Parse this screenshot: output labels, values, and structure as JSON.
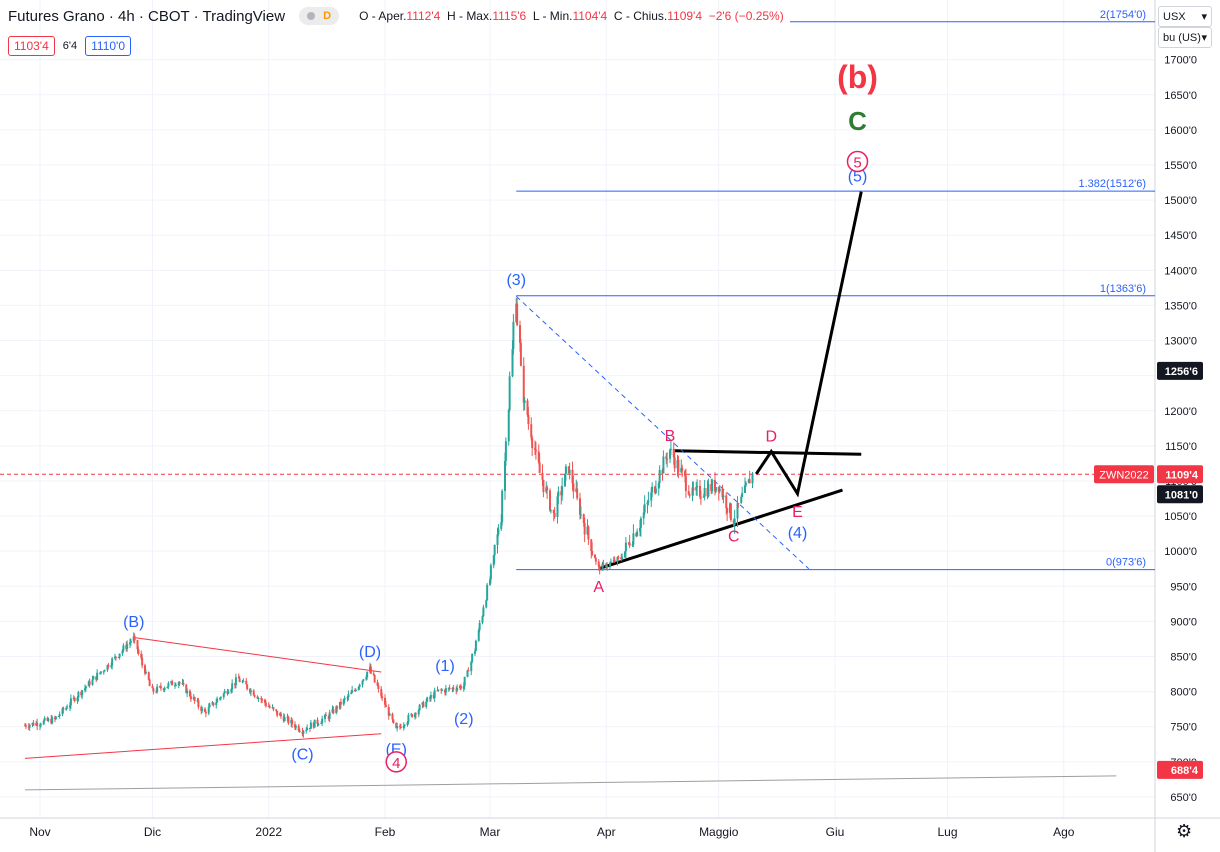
{
  "header": {
    "title": "Futures Grano · 4h · CBOT · TradingView",
    "badge_letter": "D",
    "ohlc": {
      "open_label": "O - Aper.",
      "open": "1112'4",
      "high_label": "H - Max.",
      "high": "1115'6",
      "low_label": "L - Min.",
      "low": "1104'4",
      "close_label": "C - Chius.",
      "close": "1109'4",
      "change": "−2'6 (−0.25%)"
    },
    "bid": "1103'4",
    "spread": "6'4",
    "ask": "1110'0"
  },
  "currency_select": {
    "value": "USX",
    "icon": "chevron-down-icon"
  },
  "unit_select": {
    "value": "bu (US)",
    "icon": "chevron-down-icon"
  },
  "settings_icon": "gear-icon",
  "chart_data": {
    "type": "candlestick",
    "title": "Futures Grano · 4h · CBOT · TradingView",
    "y_unit": "US cents per bushel (USX / bu)",
    "ylim": [
      620,
      1785
    ],
    "y_ticks": [
      "1700'0",
      "1650'0",
      "1600'0",
      "1550'0",
      "1500'0",
      "1450'0",
      "1400'0",
      "1350'0",
      "1300'0",
      "1250'0",
      "1200'0",
      "1150'0",
      "1100'0",
      "1050'0",
      "1000'0",
      "950'0",
      "900'0",
      "850'0",
      "800'0",
      "750'0",
      "700'0",
      "650'0"
    ],
    "y_tick_values": [
      1700,
      1650,
      1600,
      1550,
      1500,
      1450,
      1400,
      1350,
      1300,
      1250,
      1200,
      1150,
      1100,
      1050,
      1000,
      950,
      900,
      850,
      800,
      750,
      700,
      650
    ],
    "x_ticks": [
      {
        "label": "Nov",
        "date": "2021-11-01"
      },
      {
        "label": "Dic",
        "date": "2021-12-01"
      },
      {
        "label": "2022",
        "date": "2022-01-01"
      },
      {
        "label": "Feb",
        "date": "2022-02-01"
      },
      {
        "label": "Mar",
        "date": "2022-03-01"
      },
      {
        "label": "Apr",
        "date": "2022-04-01"
      },
      {
        "label": "Maggio",
        "date": "2022-05-01"
      },
      {
        "label": "Giu",
        "date": "2022-06-01"
      },
      {
        "label": "Lug",
        "date": "2022-07-01"
      },
      {
        "label": "Ago",
        "date": "2022-08-01"
      }
    ],
    "price_path": [
      {
        "date": "2021-10-28",
        "price": 752
      },
      {
        "date": "2021-11-05",
        "price": 760
      },
      {
        "date": "2021-11-12",
        "price": 800
      },
      {
        "date": "2021-11-20",
        "price": 842
      },
      {
        "date": "2021-11-26",
        "price": 876
      },
      {
        "date": "2021-12-01",
        "price": 800
      },
      {
        "date": "2021-12-08",
        "price": 815
      },
      {
        "date": "2021-12-15",
        "price": 770
      },
      {
        "date": "2021-12-24",
        "price": 818
      },
      {
        "date": "2022-01-03",
        "price": 770
      },
      {
        "date": "2022-01-10",
        "price": 745
      },
      {
        "date": "2022-01-17",
        "price": 765
      },
      {
        "date": "2022-01-24",
        "price": 802
      },
      {
        "date": "2022-01-28",
        "price": 832
      },
      {
        "date": "2022-02-04",
        "price": 745
      },
      {
        "date": "2022-02-10",
        "price": 775
      },
      {
        "date": "2022-02-15",
        "price": 800
      },
      {
        "date": "2022-02-22",
        "price": 808
      },
      {
        "date": "2022-02-25",
        "price": 860
      },
      {
        "date": "2022-03-01",
        "price": 960
      },
      {
        "date": "2022-03-04",
        "price": 1050
      },
      {
        "date": "2022-03-08",
        "price": 1363
      },
      {
        "date": "2022-03-10",
        "price": 1220
      },
      {
        "date": "2022-03-14",
        "price": 1120
      },
      {
        "date": "2022-03-18",
        "price": 1050
      },
      {
        "date": "2022-03-22",
        "price": 1120
      },
      {
        "date": "2022-03-25",
        "price": 1060
      },
      {
        "date": "2022-03-30",
        "price": 975
      },
      {
        "date": "2022-04-05",
        "price": 990
      },
      {
        "date": "2022-04-10",
        "price": 1040
      },
      {
        "date": "2022-04-18",
        "price": 1145
      },
      {
        "date": "2022-04-24",
        "price": 1080
      },
      {
        "date": "2022-05-01",
        "price": 1095
      },
      {
        "date": "2022-05-05",
        "price": 1045
      },
      {
        "date": "2022-05-10",
        "price": 1109
      }
    ],
    "horizontal_levels": [
      {
        "label": "2(1754'0)",
        "value": 1754
      },
      {
        "label": "1.382(1512'6)",
        "value": 1512.75
      },
      {
        "label": "1(1363'6)",
        "value": 1363.75
      },
      {
        "label": "0(973'6)",
        "value": 973.75
      }
    ],
    "price_markers": [
      {
        "label": "1256'6",
        "value": 1256.75,
        "style": "dark"
      },
      {
        "label": "1109'4",
        "value": 1109.5,
        "style": "red",
        "tag": "ZWN2022"
      },
      {
        "label": "1081'0",
        "value": 1081,
        "style": "dark"
      },
      {
        "label": "688'4",
        "value": 688.5,
        "style": "red"
      }
    ],
    "wave_labels": [
      {
        "text": "(B)",
        "date": "2021-11-26",
        "price": 878,
        "color": "#2962ff",
        "pos": "above"
      },
      {
        "text": "(C)",
        "date": "2022-01-10",
        "price": 735,
        "color": "#2962ff",
        "pos": "below"
      },
      {
        "text": "(D)",
        "date": "2022-01-28",
        "price": 835,
        "color": "#2962ff",
        "pos": "above"
      },
      {
        "text": "(E)",
        "date": "2022-02-04",
        "price": 742,
        "color": "#2962ff",
        "pos": "below"
      },
      {
        "text": "4",
        "date": "2022-02-04",
        "price": 700,
        "color": "#e91e63",
        "circle": true
      },
      {
        "text": "(1)",
        "date": "2022-02-17",
        "price": 815,
        "color": "#2962ff",
        "pos": "above"
      },
      {
        "text": "(2)",
        "date": "2022-02-22",
        "price": 785,
        "color": "#2962ff",
        "pos": "below"
      },
      {
        "text": "(3)",
        "date": "2022-03-08",
        "price": 1365,
        "color": "#2962ff",
        "pos": "above"
      },
      {
        "text": "A",
        "date": "2022-03-30",
        "price": 973,
        "color": "#e91e63",
        "pos": "below"
      },
      {
        "text": "B",
        "date": "2022-04-18",
        "price": 1143,
        "color": "#e91e63",
        "pos": "above"
      },
      {
        "text": "C",
        "date": "2022-05-05",
        "price": 1045,
        "color": "#e91e63",
        "pos": "below"
      },
      {
        "text": "D",
        "date": "2022-05-15",
        "price": 1142,
        "color": "#e91e63",
        "pos": "above"
      },
      {
        "text": "E",
        "date": "2022-05-22",
        "price": 1080,
        "color": "#e91e63",
        "pos": "below"
      },
      {
        "text": "(4)",
        "date": "2022-05-22",
        "price": 1050,
        "color": "#2962ff",
        "pos": "below"
      },
      {
        "text": "(5)",
        "date": "2022-06-07",
        "price": 1512,
        "color": "#2962ff",
        "pos": "above"
      },
      {
        "text": "5",
        "date": "2022-06-07",
        "price": 1555,
        "color": "#e91e63",
        "circle": true
      },
      {
        "text": "C",
        "date": "2022-06-07",
        "price": 1600,
        "color": "#2e7d32",
        "big": true
      },
      {
        "text": "(b)",
        "date": "2022-06-07",
        "price": 1660,
        "color": "#f23645",
        "huge": true
      }
    ],
    "trendlines": [
      {
        "name": "triangle-upper-red",
        "color": "#f23645",
        "p1": [
          "2021-11-26",
          877
        ],
        "p2": [
          "2022-01-31",
          828
        ]
      },
      {
        "name": "triangle-lower-red",
        "color": "#f23645",
        "p1": [
          "2021-10-28",
          705
        ],
        "p2": [
          "2022-01-31",
          740
        ]
      },
      {
        "name": "long-support-gray",
        "color": "#9e9e9e",
        "p1": [
          "2021-10-28",
          660
        ],
        "p2": [
          "2022-08-15",
          680
        ]
      },
      {
        "name": "triangle-upper-black",
        "color": "#000000",
        "p1": [
          "2022-04-19",
          1143
        ],
        "p2": [
          "2022-06-08",
          1138
        ]
      },
      {
        "name": "triangle-lower-black",
        "color": "#000000",
        "p1": [
          "2022-03-30",
          975
        ],
        "p2": [
          "2022-06-03",
          1087
        ]
      },
      {
        "name": "decline-dashed-blue",
        "color": "#2962ff",
        "dashed": true,
        "p1": [
          "2022-03-08",
          1363
        ],
        "p2": [
          "2022-05-25",
          975
        ]
      }
    ],
    "projection_path": [
      {
        "date": "2022-05-11",
        "price": 1110
      },
      {
        "date": "2022-05-15",
        "price": 1142
      },
      {
        "date": "2022-05-22",
        "price": 1082
      },
      {
        "date": "2022-06-08",
        "price": 1512
      }
    ]
  }
}
